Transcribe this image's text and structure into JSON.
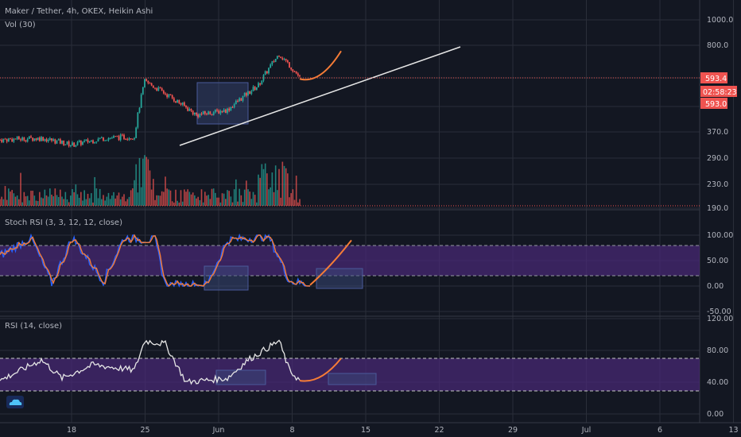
{
  "header": {
    "title": "Maker / Tether, 4h, OKEX, Heikin Ashi",
    "volume_label": "Vol (30)"
  },
  "price_tags": {
    "current": "593.4",
    "countdown": "02:58:23",
    "secondary": "593.0"
  },
  "colors": {
    "bull": "#26a69a",
    "bear": "#ef5350",
    "projection": "#f57c37",
    "stoch_k": "#2962ff",
    "stoch_d": "#f57c37",
    "rsi_line": "#e6e6e6",
    "band_fill": "#4a2a78",
    "highlight_box": "#3a4a7a",
    "grid": "#2a2e39",
    "price_line": "#ef5350"
  },
  "chart_data": [
    {
      "type": "candlestick",
      "title": "Maker / Tether, 4h, OKEX, Heikin Ashi",
      "y_ticks": [
        "1000.0",
        "800.0",
        "370.0",
        "290.0",
        "230.0",
        "190.0"
      ],
      "current_price": 593.4,
      "trendline": "ascending support line from ~360 (May 27) to ~790 (Jun 22)",
      "keypoints": [
        {
          "date": "May 14",
          "price": 345
        },
        {
          "date": "May 18",
          "price": 350
        },
        {
          "date": "May 21",
          "price": 330
        },
        {
          "date": "May 24",
          "price": 350
        },
        {
          "date": "May 27",
          "price": 355
        },
        {
          "date": "May 28",
          "price": 580
        },
        {
          "date": "May 30",
          "price": 520
        },
        {
          "date": "Jun 2",
          "price": 430
        },
        {
          "date": "Jun 5",
          "price": 450
        },
        {
          "date": "Jun 8",
          "price": 560
        },
        {
          "date": "Jun 10",
          "price": 740
        },
        {
          "date": "Jun 12",
          "price": 600
        }
      ],
      "projection": [
        {
          "date": "Jun 12",
          "price": 593
        },
        {
          "date": "Jun 14",
          "price": 610
        },
        {
          "date": "Jun 16",
          "price": 760
        }
      ]
    },
    {
      "type": "bar",
      "title": "Vol (30)",
      "note": "volume histogram, spike near May 28 and Jun 9-10"
    },
    {
      "type": "line",
      "title": "Stoch RSI (3, 3, 12, 12, close)",
      "y_ticks": [
        "100.00",
        "50.00",
        "0.00",
        "-50.00"
      ],
      "band": [
        20,
        80
      ],
      "keypoints": [
        {
          "date": "May 14",
          "value": 60
        },
        {
          "date": "May 17",
          "value": 95
        },
        {
          "date": "May 19",
          "value": 5
        },
        {
          "date": "May 21",
          "value": 95
        },
        {
          "date": "May 24",
          "value": 10
        },
        {
          "date": "May 26",
          "value": 95
        },
        {
          "date": "May 29",
          "value": 90
        },
        {
          "date": "May 30",
          "value": 2
        },
        {
          "date": "Jun 3",
          "value": 2
        },
        {
          "date": "Jun 5",
          "value": 90
        },
        {
          "date": "Jun 9",
          "value": 98
        },
        {
          "date": "Jun 11",
          "value": 10
        },
        {
          "date": "Jun 13",
          "value": 2
        }
      ],
      "projection": [
        {
          "date": "Jun 13",
          "value": 2
        },
        {
          "date": "Jun 15",
          "value": 50
        },
        {
          "date": "Jun 17",
          "value": 90
        }
      ]
    },
    {
      "type": "line",
      "title": "RSI (14, close)",
      "y_ticks": [
        "120.00",
        "80.00",
        "40.00",
        "0.00"
      ],
      "band": [
        30,
        70
      ],
      "keypoints": [
        {
          "date": "May 14",
          "value": 42
        },
        {
          "date": "May 18",
          "value": 68
        },
        {
          "date": "May 20",
          "value": 45
        },
        {
          "date": "May 23",
          "value": 62
        },
        {
          "date": "May 27",
          "value": 55
        },
        {
          "date": "May 28",
          "value": 92
        },
        {
          "date": "May 30",
          "value": 88
        },
        {
          "date": "Jun 1",
          "value": 40
        },
        {
          "date": "Jun 5",
          "value": 45
        },
        {
          "date": "Jun 7",
          "value": 68
        },
        {
          "date": "Jun 10",
          "value": 92
        },
        {
          "date": "Jun 11",
          "value": 55
        },
        {
          "date": "Jun 12",
          "value": 42
        }
      ],
      "projection": [
        {
          "date": "Jun 12",
          "value": 42
        },
        {
          "date": "Jun 14",
          "value": 45
        },
        {
          "date": "Jun 16",
          "value": 70
        }
      ]
    }
  ],
  "panels": {
    "stoch_label": "Stoch RSI (3, 3, 12, 12, close)",
    "rsi_label": "RSI (14, close)"
  },
  "x_axis": {
    "ticks": [
      "18",
      "25",
      "Jun",
      "8",
      "15",
      "22",
      "29",
      "Jul",
      "6",
      "13"
    ]
  }
}
